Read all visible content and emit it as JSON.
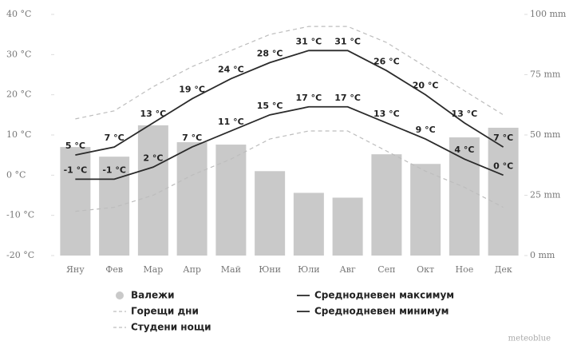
{
  "chart_data": {
    "type": "bar",
    "categories": [
      "Яну",
      "Фев",
      "Мар",
      "Апр",
      "Май",
      "Юни",
      "Юли",
      "Авг",
      "Сеп",
      "Окт",
      "Ное",
      "Дек"
    ],
    "series": [
      {
        "name": "Валежи",
        "type": "bar",
        "axis": "y2",
        "color": "#c9c9c9",
        "values": [
          45,
          41,
          54,
          47,
          46,
          35,
          26,
          24,
          42,
          38,
          49,
          53
        ]
      },
      {
        "name": "Горещи дни",
        "type": "line",
        "dash": true,
        "color": "#bdbdbd",
        "values": [
          14,
          16,
          22,
          27,
          31,
          35,
          37,
          37,
          33,
          27,
          21,
          15
        ]
      },
      {
        "name": "Студени нощи",
        "type": "line",
        "dash": true,
        "color": "#bdbdbd",
        "values": [
          -9,
          -8,
          -5,
          0,
          4,
          9,
          11,
          11,
          6,
          1,
          -3,
          -8
        ]
      },
      {
        "name": "Среднодневен максимум",
        "type": "line",
        "color": "#2b2b2b",
        "values": [
          5,
          7,
          13,
          19,
          24,
          28,
          31,
          31,
          26,
          20,
          13,
          7
        ],
        "value_labels": [
          "5 °C",
          "7 °C",
          "13 °C",
          "19 °C",
          "24 °C",
          "28 °C",
          "31 °C",
          "31 °C",
          "26 °C",
          "20 °C",
          "13 °C",
          "7 °C"
        ]
      },
      {
        "name": "Среднодневен минимум",
        "type": "line",
        "color": "#2b2b2b",
        "values": [
          -1,
          -1,
          2,
          7,
          11,
          15,
          17,
          17,
          13,
          9,
          4,
          0
        ],
        "value_labels": [
          "-1 °C",
          "-1 °C",
          "2 °C",
          "7 °C",
          "11 °C",
          "15 °C",
          "17 °C",
          "17 °C",
          "13 °C",
          "9 °C",
          "4 °C",
          "0 °C"
        ]
      }
    ],
    "ylim": [
      -20,
      40
    ],
    "yticks": [
      {
        "value": 40,
        "label": "40 °C"
      },
      {
        "value": 30,
        "label": "30 °C"
      },
      {
        "value": 20,
        "label": "20 °C"
      },
      {
        "value": 10,
        "label": "10 °C"
      },
      {
        "value": 0,
        "label": "0 °C"
      },
      {
        "value": -10,
        "label": "-10 °C"
      },
      {
        "value": -20,
        "label": "-20 °C"
      }
    ],
    "y2lim": [
      0,
      100
    ],
    "y2ticks": [
      {
        "value": 100,
        "label": "100 mm"
      },
      {
        "value": 75,
        "label": "75 mm"
      },
      {
        "value": 50,
        "label": "50 mm"
      },
      {
        "value": 25,
        "label": "25 mm"
      },
      {
        "value": 0,
        "label": "0 mm"
      }
    ],
    "brand": "meteoblue"
  }
}
